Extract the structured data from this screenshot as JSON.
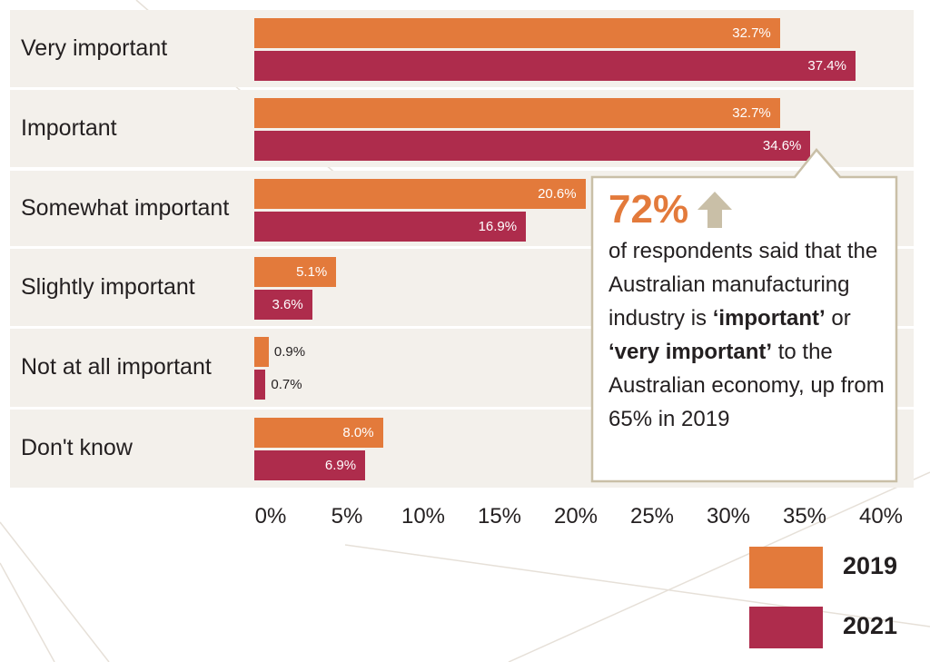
{
  "chart_data": {
    "type": "bar",
    "orientation": "horizontal",
    "categories": [
      "Very important",
      "Important",
      "Somewhat important",
      "Slightly important",
      "Not at all important",
      "Don't know"
    ],
    "series": [
      {
        "name": "2019",
        "color": "#e37a3b",
        "values": [
          32.7,
          32.7,
          20.6,
          5.1,
          0.9,
          8.0
        ],
        "labels": [
          "32.7%",
          "32.7%",
          "20.6%",
          "5.1%",
          "0.9%",
          "8.0%"
        ]
      },
      {
        "name": "2021",
        "color": "#ae2c4c",
        "values": [
          37.4,
          34.6,
          16.9,
          3.6,
          0.7,
          6.9
        ],
        "labels": [
          "37.4%",
          "34.6%",
          "16.9%",
          "3.6%",
          "0.7%",
          "6.9%"
        ]
      }
    ],
    "xticks": [
      "0%",
      "5%",
      "10%",
      "15%",
      "20%",
      "25%",
      "30%",
      "35%",
      "40%"
    ],
    "xlim": [
      0,
      40
    ],
    "grid": false,
    "legend_position": "bottom-right"
  },
  "callout": {
    "headline": "72%",
    "arrow_icon": "up-arrow-icon",
    "text_1": "of respondents said that the Australian manufacturing industry is ",
    "emph_1": "‘important’",
    "text_2": " or ",
    "emph_2": "‘very important’",
    "text_3": " to the Australian economy, up from 65% in 2019"
  },
  "colors": {
    "series_2019": "#e37a3b",
    "series_2021": "#ae2c4c",
    "row_background": "#f3f0eb",
    "callout_border": "#c9bfa7",
    "arrow": "#c9bfa7"
  }
}
